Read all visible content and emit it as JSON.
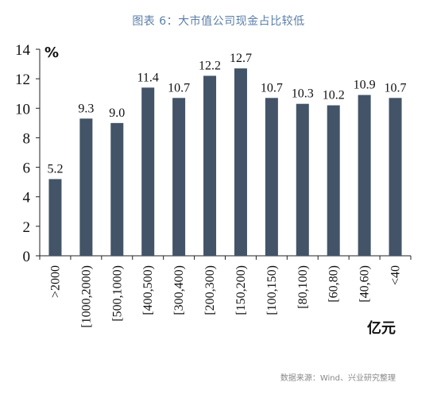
{
  "chart_data": {
    "type": "bar",
    "title": "图表 6：大市值公司现金占比较低",
    "ylabel": "%",
    "xlabel": "亿元",
    "ylim": [
      0,
      14
    ],
    "yticks": [
      0,
      2,
      4,
      6,
      8,
      10,
      12,
      14
    ],
    "categories": [
      ">2000",
      "[1000,2000)",
      "[500,1000)",
      "[400,500)",
      "[300,400)",
      "[200,300)",
      "[150,200)",
      "[100,150)",
      "[80,100)",
      "[60,80)",
      "[40,60)",
      "<40"
    ],
    "values": [
      5.2,
      9.3,
      9.0,
      11.4,
      10.7,
      12.2,
      12.7,
      10.7,
      10.3,
      10.2,
      10.9,
      10.7
    ],
    "value_labels": [
      "5.2",
      "9.3",
      "9.0",
      "11.4",
      "10.7",
      "12.2",
      "12.7",
      "10.7",
      "10.3",
      "10.2",
      "10.9",
      "10.7"
    ],
    "bar_color": "#435468",
    "grid": false,
    "legend": "none"
  },
  "source": "数据来源：Wind、兴业研究整理"
}
